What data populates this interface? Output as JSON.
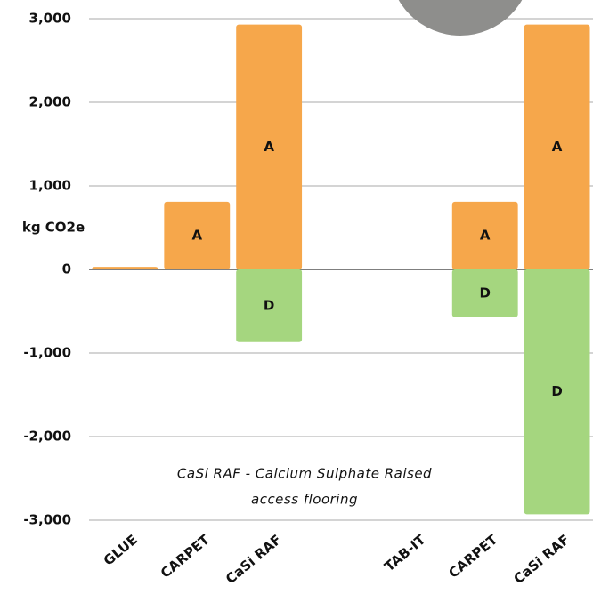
{
  "chart_data": {
    "type": "bar",
    "stacked": true,
    "categories": [
      "GLUE",
      "CARPET",
      "CaSi RAF",
      null,
      "TAB-IT",
      "CARPET",
      "CaSi RAF"
    ],
    "series": [
      {
        "name": "A",
        "color": "#f6a74b",
        "values": [
          30,
          810,
          2930,
          null,
          10,
          810,
          2930
        ]
      },
      {
        "name": "D",
        "color": "#a5d67f",
        "values": [
          null,
          null,
          -870,
          null,
          null,
          -570,
          -2930
        ]
      }
    ],
    "y_label": "kg CO2e",
    "annotation": [
      "CaSi RAF - Calcium Sulphate Raised",
      "access flooring"
    ],
    "ylim": [
      -3000,
      3000
    ],
    "yticks": [
      {
        "value": 3000,
        "label": "3,000"
      },
      {
        "value": 2000,
        "label": "2,000"
      },
      {
        "value": 1000,
        "label": "1,000"
      },
      0,
      {
        "value": -1000,
        "label": "-1,000"
      },
      {
        "value": -2000,
        "label": "-2,000"
      },
      {
        "value": -3000,
        "label": "-3,000"
      }
    ],
    "grid": true
  }
}
